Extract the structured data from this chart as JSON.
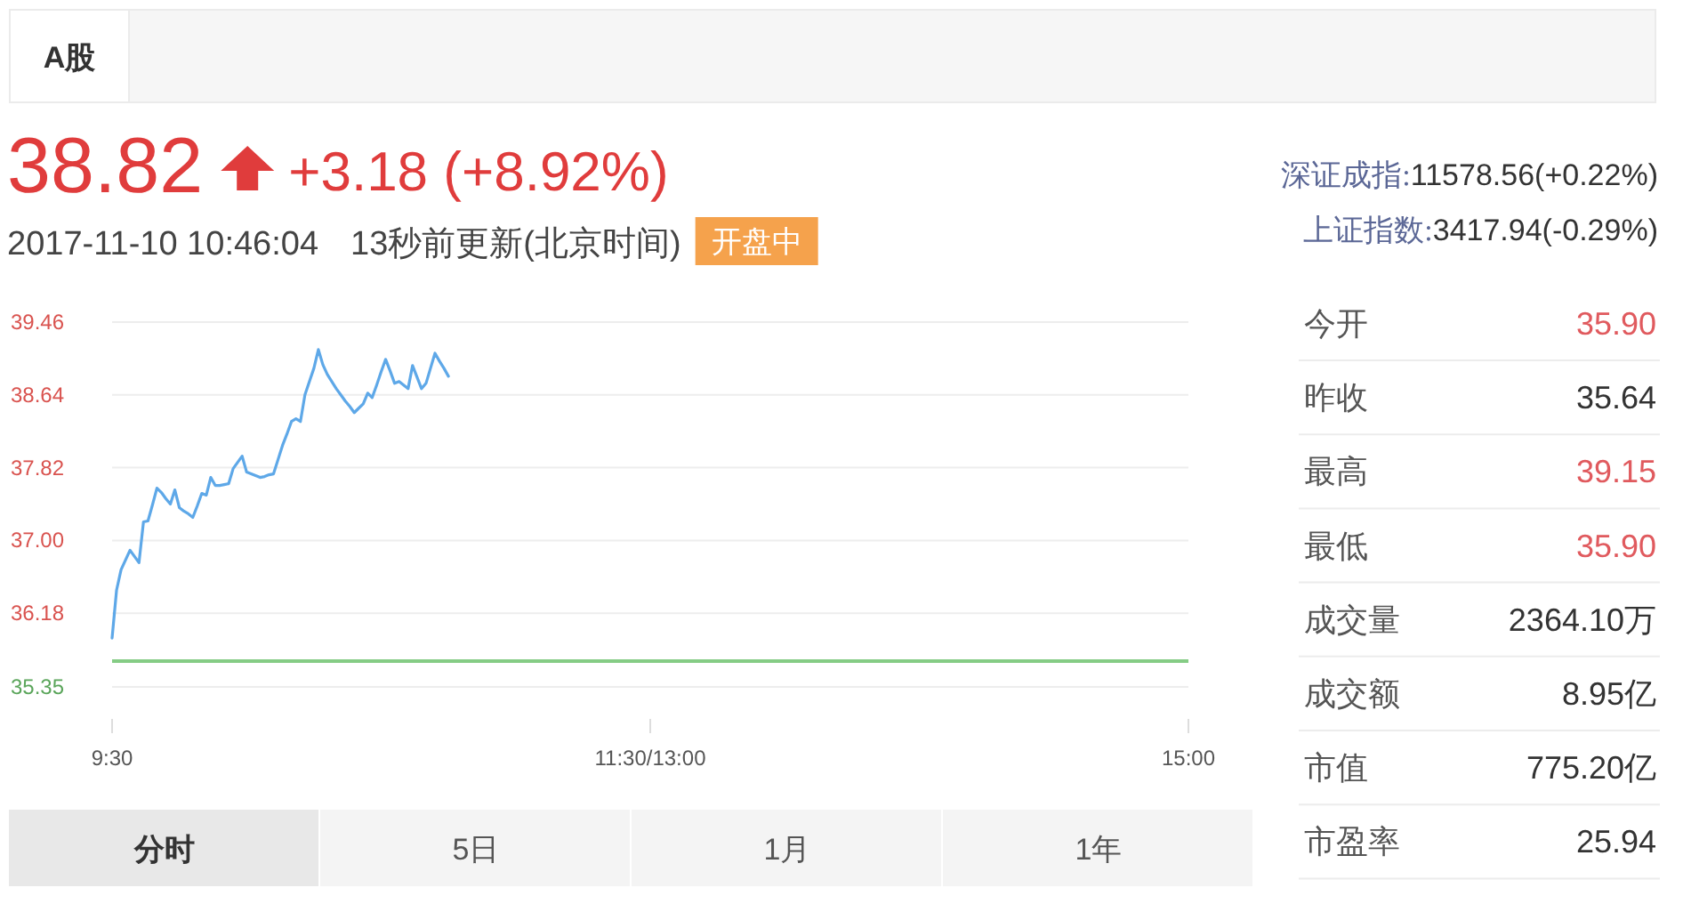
{
  "chart_data": [
    {
      "type": "other",
      "annotations": [
        "A股",
        "38.82",
        "+3.18 (+8.92%)",
        "2017-11-10 10:46:04",
        "13秒前更新(北京时间)",
        "开盘中",
        "深证成指:11578.56(+0.22%)",
        "上证指数:3417.94(-0.29%)"
      ]
    },
    {
      "type": "line",
      "categories": [
        "9:30",
        null,
        null,
        null,
        null,
        null,
        null,
        null,
        null,
        null,
        null,
        null,
        null,
        null,
        null,
        null,
        null,
        null,
        null,
        null,
        null,
        null,
        null,
        null,
        null,
        null,
        null,
        null,
        null,
        null,
        null,
        null,
        null,
        null,
        null,
        null,
        null,
        null,
        null,
        null,
        null,
        null,
        null,
        null,
        null,
        null,
        null,
        null,
        null,
        null,
        null,
        null,
        null,
        null,
        null,
        null,
        null,
        null,
        null,
        null,
        null,
        null,
        null,
        null,
        null,
        null,
        null,
        null,
        null,
        null,
        null,
        null,
        null,
        null,
        null,
        null,
        null,
        null,
        null,
        null,
        null,
        null,
        null,
        null,
        null,
        null,
        null,
        null,
        null,
        null,
        null,
        null,
        null,
        null,
        null,
        null,
        null,
        null,
        null,
        null,
        null,
        null,
        null,
        null,
        null,
        null,
        null,
        null,
        null,
        null,
        null,
        null,
        null,
        null,
        null,
        null,
        null,
        null,
        null,
        null,
        "11:30/13:00",
        null,
        null,
        null,
        null,
        null,
        null,
        null,
        null,
        null,
        null,
        null,
        null,
        null,
        null,
        null,
        null,
        null,
        null,
        null,
        null,
        null,
        null,
        null,
        null,
        null,
        null,
        null,
        null,
        null,
        null,
        null,
        null,
        null,
        null,
        null,
        null,
        null,
        null,
        null,
        null,
        null,
        null,
        null,
        null,
        null,
        null,
        null,
        null,
        null,
        null,
        null,
        null,
        null,
        null,
        null,
        null,
        null,
        null,
        null,
        null,
        null,
        null,
        null,
        null,
        null,
        null,
        null,
        null,
        null,
        null,
        null,
        null,
        null,
        null,
        null,
        null,
        null,
        null,
        null,
        null,
        null,
        null,
        null,
        null,
        null,
        null,
        null,
        null,
        null,
        null,
        null,
        null,
        null,
        null,
        null,
        null,
        null,
        null,
        null,
        null,
        null,
        null,
        null,
        null,
        null,
        null,
        null,
        null,
        null,
        null,
        null,
        null,
        null,
        null,
        null,
        null,
        null,
        null,
        null,
        "15:00"
      ],
      "series": [
        {
          "color": "#5ea8e8",
          "values": [
            35.9,
            36.44,
            36.67,
            36.78,
            36.89,
            36.82,
            36.75,
            37.21,
            37.22,
            37.4,
            37.59,
            37.54,
            37.47,
            37.41,
            37.57,
            37.37,
            37.33,
            37.3,
            37.26,
            37.39,
            37.53,
            37.51,
            37.71,
            37.62,
            37.62,
            37.63,
            37.64,
            37.81,
            37.88,
            37.95,
            37.77,
            37.75,
            37.73,
            37.71,
            37.72,
            37.74,
            37.75,
            37.91,
            38.07,
            38.2,
            38.34,
            38.37,
            38.34,
            38.64,
            38.79,
            38.94,
            39.15,
            38.98,
            38.87,
            38.79,
            38.71,
            38.64,
            38.57,
            38.51,
            38.44,
            38.49,
            38.54,
            38.66,
            38.61,
            38.75,
            38.9,
            39.04,
            38.91,
            38.77,
            38.79,
            38.75,
            38.71,
            38.97,
            38.84,
            38.71,
            38.77,
            38.94,
            39.11,
            39.02,
            38.94,
            38.85,
            null,
            null,
            null,
            null,
            null,
            null,
            null,
            null,
            null,
            null,
            null,
            null,
            null,
            null,
            null,
            null,
            null,
            null,
            null,
            null,
            null,
            null,
            null,
            null,
            null,
            null,
            null,
            null,
            null,
            null,
            null,
            null,
            null,
            null,
            null,
            null,
            null,
            null,
            null,
            null,
            null,
            null,
            null,
            null,
            null,
            null,
            null,
            null,
            null,
            null,
            null,
            null,
            null,
            null,
            null,
            null,
            null,
            null,
            null,
            null,
            null,
            null,
            null,
            null,
            null,
            null,
            null,
            null,
            null,
            null,
            null,
            null,
            null,
            null,
            null,
            null,
            null,
            null,
            null,
            null,
            null,
            null,
            null,
            null,
            null,
            null,
            null,
            null,
            null,
            null,
            null,
            null,
            null,
            null,
            null,
            null,
            null,
            null,
            null,
            null,
            null,
            null,
            null,
            null,
            null,
            null,
            null,
            null,
            null,
            null,
            null,
            null,
            null,
            null,
            null,
            null,
            null,
            null,
            null,
            null,
            null,
            null,
            null,
            null,
            null,
            null,
            null,
            null,
            null,
            null,
            null,
            null,
            null,
            null,
            null,
            null,
            null,
            null,
            null,
            null,
            null,
            null,
            null,
            null,
            null,
            null,
            null,
            null,
            null,
            null,
            null,
            null,
            null,
            null,
            null,
            null,
            null,
            null,
            null,
            null,
            null,
            null,
            null,
            null,
            null
          ]
        }
      ],
      "ylim": [
        35.35,
        39.46
      ],
      "yticks": [
        35.35,
        36.18,
        {
          "value": 37,
          "label": "37.00"
        },
        37.82,
        38.64,
        39.46
      ],
      "grid": "y",
      "ref_lines": [
        {
          "axis": "y",
          "value": 35.64,
          "color": "#85cc85"
        }
      ]
    },
    {
      "type": "other",
      "categories": [
        "今开",
        "昨收",
        "最高",
        "最低",
        "成交量",
        "成交额",
        "市值",
        "市盈率"
      ],
      "value_labels": [
        "35.90",
        "35.64",
        "39.15",
        "35.90",
        "2364.10万",
        "8.95亿",
        "775.20亿",
        "25.94"
      ],
      "colors": [
        "#e05a5e",
        "#333333",
        "#e05a5e",
        "#e05a5e",
        "#333333",
        "#333333",
        "#333333",
        "#333333"
      ]
    },
    {
      "type": "other",
      "categories": [
        "分时",
        "5日",
        "1月",
        "1年"
      ]
    }
  ]
}
